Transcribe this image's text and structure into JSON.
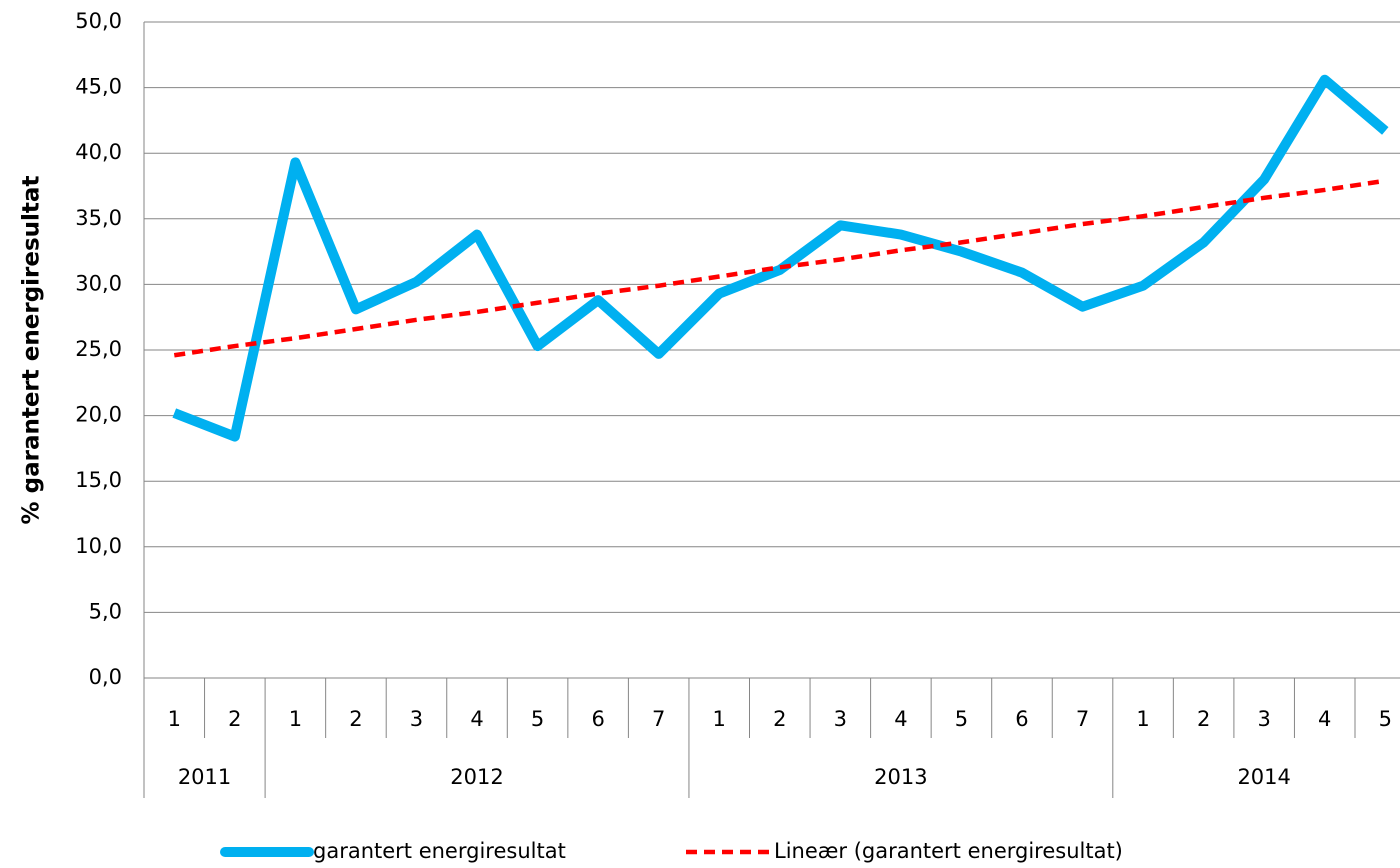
{
  "chart_data": {
    "type": "line",
    "y_label": "% garantert energiresultat",
    "categories": [
      "1",
      "2",
      "1",
      "2",
      "3",
      "4",
      "5",
      "6",
      "7",
      "1",
      "2",
      "3",
      "4",
      "5",
      "6",
      "7",
      "1",
      "2",
      "3",
      "4",
      "5"
    ],
    "category_groups": [
      "2011",
      "2011",
      "2012",
      "2012",
      "2012",
      "2012",
      "2012",
      "2012",
      "2012",
      "2013",
      "2013",
      "2013",
      "2013",
      "2013",
      "2013",
      "2013",
      "2014",
      "2014",
      "2014",
      "2014",
      "2014"
    ],
    "series": [
      {
        "name": "garantert energiresultat",
        "color": "#00b0f0",
        "style": "solid",
        "values": [
          20.2,
          18.4,
          39.3,
          28.1,
          30.2,
          33.8,
          25.3,
          28.8,
          24.7,
          29.3,
          31.1,
          34.5,
          33.8,
          32.5,
          30.9,
          28.3,
          29.9,
          33.2,
          38.0,
          45.6,
          41.7
        ]
      },
      {
        "name": "Lineær (garantert energiresultat)",
        "color": "#ff0000",
        "style": "dashed",
        "values": [
          24.6,
          25.3,
          25.9,
          26.6,
          27.3,
          27.9,
          28.6,
          29.3,
          29.9,
          30.6,
          31.3,
          31.9,
          32.6,
          33.2,
          33.9,
          34.6,
          35.2,
          35.9,
          36.6,
          37.2,
          37.9
        ]
      }
    ],
    "ylim": [
      0,
      50
    ],
    "yticks": [
      {
        "value": 0,
        "label": "0,0"
      },
      {
        "value": 5,
        "label": "5,0"
      },
      {
        "value": 10,
        "label": "10,0"
      },
      {
        "value": 15,
        "label": "15,0"
      },
      {
        "value": 20,
        "label": "20,0"
      },
      {
        "value": 25,
        "label": "25,0"
      },
      {
        "value": 30,
        "label": "30,0"
      },
      {
        "value": 35,
        "label": "35,0"
      },
      {
        "value": 40,
        "label": "40,0"
      },
      {
        "value": 45,
        "label": "45,0"
      },
      {
        "value": 50,
        "label": "50,0"
      }
    ],
    "grid": true,
    "legend": "bottom"
  }
}
